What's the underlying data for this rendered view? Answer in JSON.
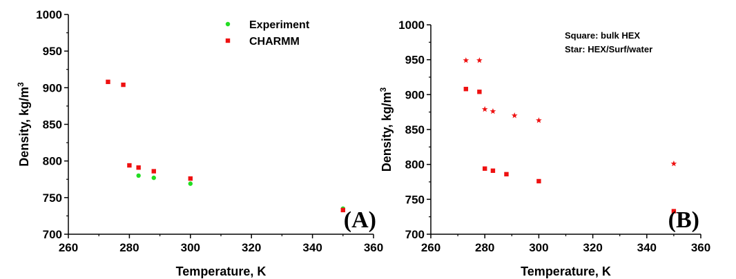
{
  "chart_data": [
    {
      "type": "scatter",
      "panel_label": "(A)",
      "xlabel": "Temperature, K",
      "ylabel": "Density, kg/m",
      "ylabel_sup": "3",
      "xlim": [
        260,
        360
      ],
      "ylim": [
        700,
        1000
      ],
      "xticks": [
        260,
        280,
        300,
        320,
        340,
        360
      ],
      "yticks": [
        700,
        750,
        800,
        850,
        900,
        950,
        1000
      ],
      "legend_position": "top-center",
      "series": [
        {
          "name": "Experiment",
          "marker": "circle",
          "color": "#22dd22",
          "x": [
            283,
            288,
            300,
            350
          ],
          "y": [
            780,
            777,
            769,
            735
          ]
        },
        {
          "name": "CHARMM",
          "marker": "square",
          "color": "#ee1111",
          "x": [
            273,
            278,
            280,
            283,
            288,
            300,
            350
          ],
          "y": [
            908,
            904,
            794,
            791,
            786,
            776,
            733
          ]
        }
      ]
    },
    {
      "type": "scatter",
      "panel_label": "(B)",
      "xlabel": "Temperature, K",
      "ylabel": "Density, kg/m",
      "ylabel_sup": "3",
      "xlim": [
        260,
        360
      ],
      "ylim": [
        700,
        1000
      ],
      "xticks": [
        260,
        280,
        300,
        320,
        340,
        360
      ],
      "yticks": [
        700,
        750,
        800,
        850,
        900,
        950,
        1000
      ],
      "annotations": [
        "Square: bulk HEX",
        "Star: HEX/Surf/water"
      ],
      "series": [
        {
          "marker": "square",
          "color": "#ee1111",
          "x": [
            273,
            278,
            280,
            283,
            288,
            300,
            350
          ],
          "y": [
            908,
            904,
            794,
            791,
            786,
            776,
            733
          ]
        },
        {
          "marker": "star",
          "color": "#ee1111",
          "x": [
            273,
            278,
            280,
            283,
            291,
            300,
            350
          ],
          "y": [
            949,
            949,
            879,
            876,
            870,
            863,
            801
          ]
        }
      ]
    }
  ]
}
